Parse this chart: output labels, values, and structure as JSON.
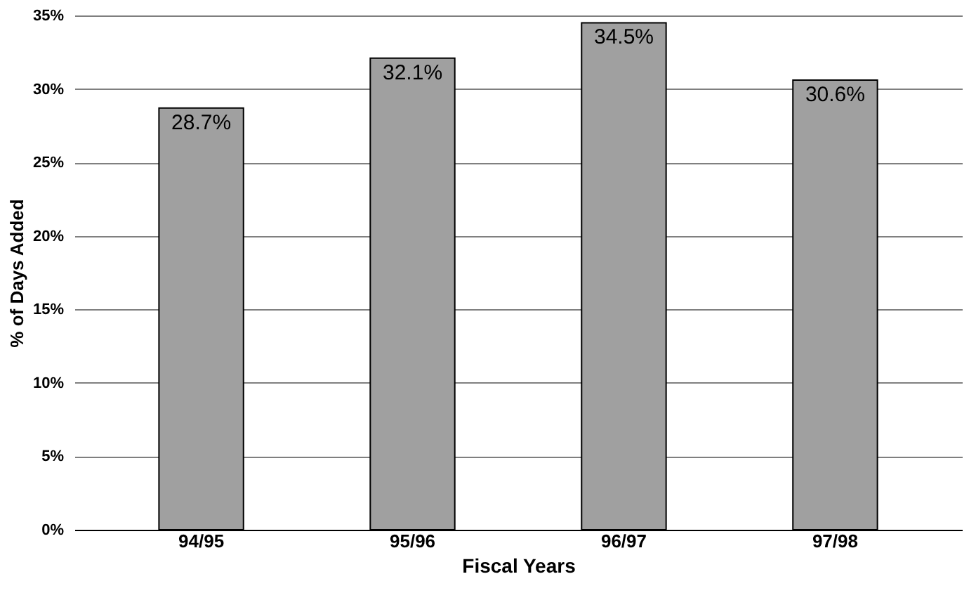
{
  "chart_data": {
    "type": "bar",
    "xlabel": "Fiscal Years",
    "ylabel": "% of Days Added",
    "categories": [
      "94/95",
      "95/96",
      "96/97",
      "97/98"
    ],
    "values": [
      28.7,
      32.1,
      34.5,
      30.6
    ],
    "value_labels": [
      "28.7%",
      "32.1%",
      "34.5%",
      "30.6%"
    ],
    "color": "#a0a0a0",
    "ylim": [
      0,
      35
    ],
    "yticks": [
      {
        "value": 0,
        "label": "0%"
      },
      {
        "value": 5,
        "label": "5%"
      },
      {
        "value": 10,
        "label": "10%"
      },
      {
        "value": 15,
        "label": "15%"
      },
      {
        "value": 20,
        "label": "20%"
      },
      {
        "value": 25,
        "label": "25%"
      },
      {
        "value": 30,
        "label": "30%"
      },
      {
        "value": 35,
        "label": "35%"
      }
    ],
    "grid": "y"
  }
}
